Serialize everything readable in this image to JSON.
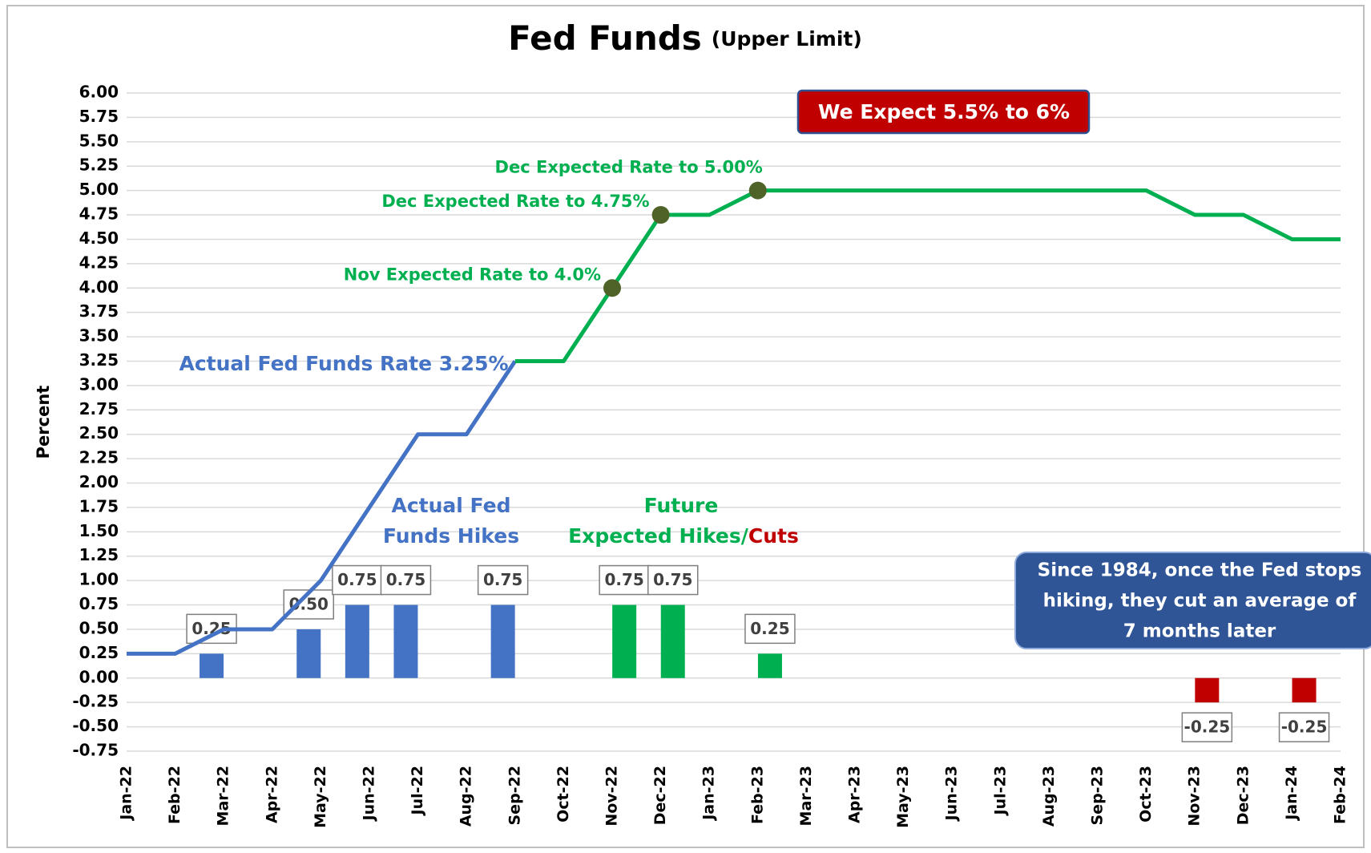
{
  "chart_data": {
    "type": "line",
    "title": "Fed Funds",
    "subtitle": "(Upper Limit)",
    "ylabel": "Percent",
    "categories": [
      "Jan-22",
      "Feb-22",
      "Mar-22",
      "Apr-22",
      "May-22",
      "Jun-22",
      "Jul-22",
      "Aug-22",
      "Sep-22",
      "Oct-22",
      "Nov-22",
      "Dec-22",
      "Jan-23",
      "Feb-23",
      "Mar-23",
      "Apr-23",
      "May-23",
      "Jun-23",
      "Jul-23",
      "Aug-23",
      "Sep-23",
      "Oct-23",
      "Nov-23",
      "Dec-23",
      "Jan-24",
      "Feb-24"
    ],
    "series": [
      {
        "color": "#4472c4",
        "values": [
          0.25,
          0.25,
          0.5,
          0.5,
          1.0,
          1.75,
          2.5,
          2.5,
          3.25,
          null,
          null,
          null,
          null,
          null,
          null,
          null,
          null,
          null,
          null,
          null,
          null,
          null,
          null,
          null,
          null,
          null
        ]
      },
      {
        "color": "#00b050",
        "values": [
          null,
          null,
          null,
          null,
          null,
          null,
          null,
          null,
          3.25,
          3.25,
          4.0,
          4.75,
          4.75,
          5.0,
          5.0,
          5.0,
          5.0,
          5.0,
          5.0,
          5.0,
          5.0,
          5.0,
          4.75,
          4.75,
          4.5,
          4.5
        ]
      }
    ],
    "bars": [
      {
        "color": "#4472c4",
        "values": [
          null,
          null,
          0.25,
          null,
          0.5,
          0.75,
          0.75,
          null,
          0.75,
          null,
          null,
          null,
          null,
          null,
          null,
          null,
          null,
          null,
          null,
          null,
          null,
          null,
          null,
          null,
          null,
          null
        ],
        "value_labels": [
          null,
          null,
          "0.25",
          null,
          "0.50",
          "0.75",
          "0.75",
          null,
          "0.75",
          null,
          null,
          null,
          null,
          null,
          null,
          null,
          null,
          null,
          null,
          null,
          null,
          null,
          null,
          null,
          null,
          null
        ]
      },
      {
        "color": "#00b050",
        "negative_color": "#c00000",
        "values": [
          null,
          null,
          null,
          null,
          null,
          null,
          null,
          null,
          null,
          null,
          0.75,
          0.75,
          null,
          0.25,
          null,
          null,
          null,
          null,
          null,
          null,
          null,
          null,
          -0.25,
          null,
          -0.25,
          null
        ],
        "value_labels": [
          null,
          null,
          null,
          null,
          null,
          null,
          null,
          null,
          null,
          null,
          "0.75",
          "0.75",
          null,
          "0.25",
          null,
          null,
          null,
          null,
          null,
          null,
          null,
          null,
          "-0.25",
          null,
          "-0.25",
          null
        ]
      }
    ],
    "series_label": "Actual Fed Funds Rate 3.25%",
    "actual_hikes_label": [
      "Actual Fed",
      "Funds Hikes"
    ],
    "future_label": [
      "Future",
      "Expected Hikes/",
      "Cuts"
    ],
    "annotations": [
      {
        "text": "Nov Expected Rate to 4.0%",
        "category": "Nov-22",
        "value": 4.0
      },
      {
        "text": "Dec Expected Rate to 4.75%",
        "category": "Dec-22",
        "value": 4.75
      },
      {
        "text": "Dec Expected Rate to 5.00%",
        "category": "Feb-23",
        "value": 5.0
      }
    ],
    "marker_color": "#4f6228",
    "callout": "We Expect 5.5% to 6%",
    "callout_color": "#c00000",
    "note": [
      "Since 1984, once the Fed stops",
      "hiking, they cut an average of",
      "7 months later"
    ],
    "note_color": "#2f5597",
    "ylim": [
      -0.75,
      6.0
    ],
    "yticks": [
      {
        "value": 6.0,
        "label": "6.00"
      },
      {
        "value": 5.75,
        "label": "5.75"
      },
      {
        "value": 5.5,
        "label": "5.50"
      },
      {
        "value": 5.25,
        "label": "5.25"
      },
      {
        "value": 5.0,
        "label": "5.00"
      },
      {
        "value": 4.75,
        "label": "4.75"
      },
      {
        "value": 4.5,
        "label": "4.50"
      },
      {
        "value": 4.25,
        "label": "4.25"
      },
      {
        "value": 4.0,
        "label": "4.00"
      },
      {
        "value": 3.75,
        "label": "3.75"
      },
      {
        "value": 3.5,
        "label": "3.50"
      },
      {
        "value": 3.25,
        "label": "3.25"
      },
      {
        "value": 3.0,
        "label": "3.00"
      },
      {
        "value": 2.75,
        "label": "2.75"
      },
      {
        "value": 2.5,
        "label": "2.50"
      },
      {
        "value": 2.25,
        "label": "2.25"
      },
      {
        "value": 2.0,
        "label": "2.00"
      },
      {
        "value": 1.75,
        "label": "1.75"
      },
      {
        "value": 1.5,
        "label": "1.50"
      },
      {
        "value": 1.25,
        "label": "1.25"
      },
      {
        "value": 1.0,
        "label": "1.00"
      },
      {
        "value": 0.75,
        "label": "0.75"
      },
      {
        "value": 0.5,
        "label": "0.50"
      },
      {
        "value": 0.25,
        "label": "0.25"
      },
      {
        "value": 0,
        "label": "0.00"
      },
      {
        "value": -0.25,
        "label": "-0.25"
      },
      {
        "value": -0.5,
        "label": "-0.50"
      },
      {
        "value": -0.75,
        "label": "-0.75"
      }
    ],
    "grid": true
  }
}
